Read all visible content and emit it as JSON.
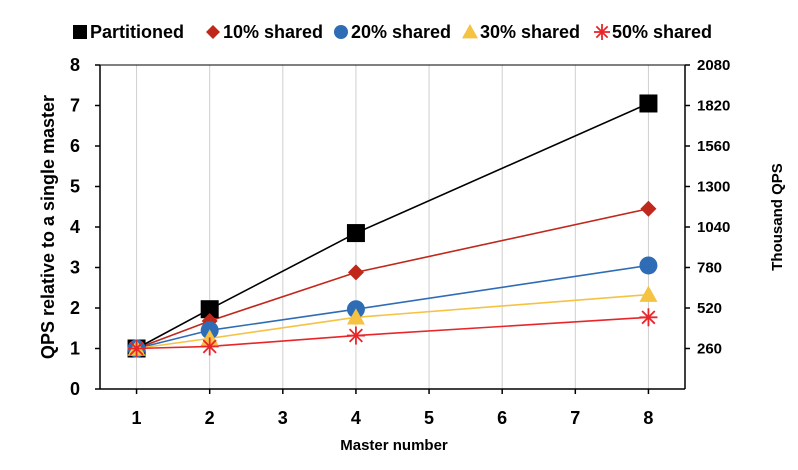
{
  "chart_data": {
    "type": "line",
    "title": "",
    "xlabel": "Master number",
    "ylabel": "QPS relative to a single master",
    "y2label": "Thousand QPS",
    "xlim": [
      0.5,
      8.5
    ],
    "ylim": [
      0,
      8
    ],
    "x_ticks": [
      "1",
      "2",
      "3",
      "4",
      "5",
      "6",
      "7",
      "8"
    ],
    "y_ticks": [
      "0",
      "1",
      "2",
      "3",
      "4",
      "5",
      "6",
      "7",
      "8"
    ],
    "y2_ticks": [
      "260",
      "520",
      "780",
      "1040",
      "1300",
      "1560",
      "1820",
      "2080"
    ],
    "legend_position": "top",
    "grid": "vertical",
    "series": [
      {
        "name": "Partitioned",
        "color": "#000000",
        "marker": "square",
        "x": [
          1,
          2,
          4,
          8
        ],
        "y": [
          1.0,
          1.97,
          3.85,
          7.05
        ]
      },
      {
        "name": "10% shared",
        "color": "#C0281C",
        "marker": "diamond",
        "x": [
          1,
          2,
          4,
          8
        ],
        "y": [
          1.0,
          1.68,
          2.88,
          4.45
        ]
      },
      {
        "name": "20% shared",
        "color": "#2E6DB6",
        "marker": "circle",
        "x": [
          1,
          2,
          4,
          8
        ],
        "y": [
          1.0,
          1.45,
          1.97,
          3.05
        ]
      },
      {
        "name": "30% shared",
        "color": "#F5C242",
        "marker": "triangle",
        "x": [
          1,
          2,
          4,
          8
        ],
        "y": [
          1.0,
          1.25,
          1.77,
          2.33
        ]
      },
      {
        "name": "50% shared",
        "color": "#E8262A",
        "marker": "asterisk",
        "x": [
          1,
          2,
          4,
          8
        ],
        "y": [
          1.0,
          1.05,
          1.32,
          1.77
        ]
      }
    ]
  }
}
